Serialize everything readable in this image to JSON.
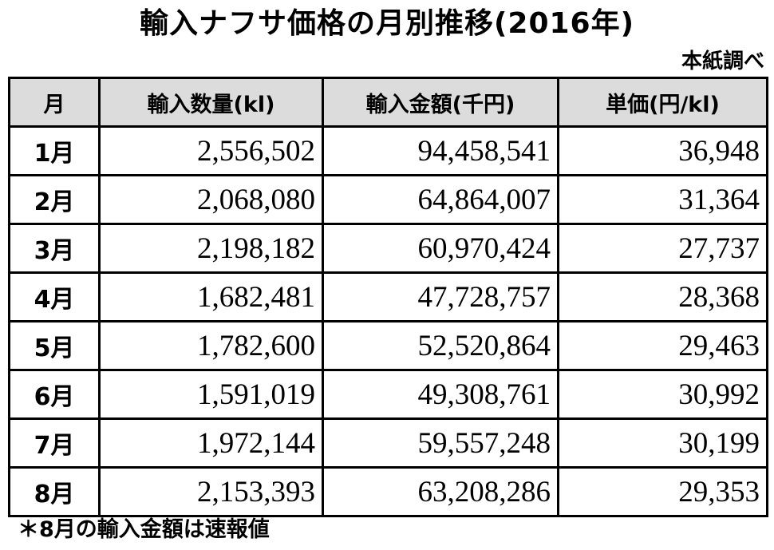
{
  "title": "輸入ナフサ価格の月別推移(2016年)",
  "source": "本紙調べ",
  "table": {
    "headers": {
      "month": "月",
      "quantity": "輸入数量(kl)",
      "amount": "輸入金額(千円)",
      "unit_price": "単価(円/kl)"
    },
    "rows": [
      {
        "month": "1月",
        "quantity": "2,556,502",
        "amount": "94,458,541",
        "unit_price": "36,948"
      },
      {
        "month": "2月",
        "quantity": "2,068,080",
        "amount": "64,864,007",
        "unit_price": "31,364"
      },
      {
        "month": "3月",
        "quantity": "2,198,182",
        "amount": "60,970,424",
        "unit_price": "27,737"
      },
      {
        "month": "4月",
        "quantity": "1,682,481",
        "amount": "47,728,757",
        "unit_price": "28,368"
      },
      {
        "month": "5月",
        "quantity": "1,782,600",
        "amount": "52,520,864",
        "unit_price": "29,463"
      },
      {
        "month": "6月",
        "quantity": "1,591,019",
        "amount": "49,308,761",
        "unit_price": "30,992"
      },
      {
        "month": "7月",
        "quantity": "1,972,144",
        "amount": "59,557,248",
        "unit_price": "30,199"
      },
      {
        "month": "8月",
        "quantity": "2,153,393",
        "amount": "63,208,286",
        "unit_price": "29,353"
      }
    ]
  },
  "note": "＊8月の輸入金額は速報値"
}
